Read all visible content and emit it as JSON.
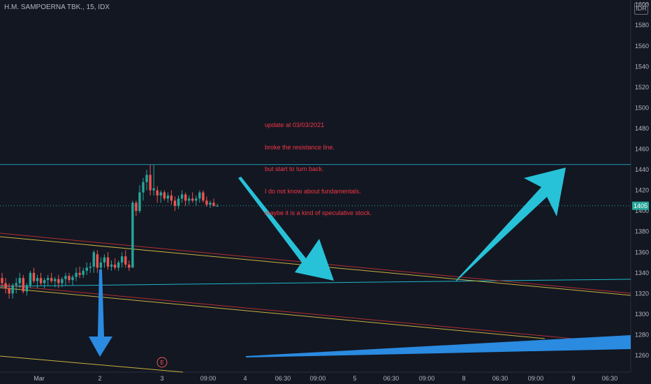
{
  "header": {
    "title": "H.M. SAMPOERNA TBK., 15, IDX",
    "currency": "IDR"
  },
  "annotation": {
    "lines": [
      "update at 03/03/2021",
      "broke the resistance line.",
      "but start to turn back.",
      "I do not know about fundamentals.",
      "maybe it is a kind of speculative stock."
    ]
  },
  "colors": {
    "background": "#131722",
    "up": "#26a69a",
    "down": "#ef5350",
    "resistance": "#2196b3",
    "support": "#1cb5c8",
    "channel_red": "#b03030",
    "channel_yellow": "#c8b040",
    "arrow_cyan": "#27c2d8",
    "arrow_blue": "#2a8be0",
    "price_badge": "#26a69a",
    "text": "#b2b5be",
    "note": "#f23645"
  },
  "chart_data": {
    "type": "candlestick",
    "title": "H.M. SAMPOERNA TBK., 15, IDX",
    "x_ticks": [
      "Mar",
      "2",
      "3",
      "09:00",
      "4",
      "06:30",
      "09:00",
      "5",
      "06:30",
      "09:00",
      "8",
      "06:30",
      "09:00",
      "9",
      "06:30"
    ],
    "y_ticks": [
      1260,
      1280,
      1300,
      1320,
      1340,
      1360,
      1380,
      1400,
      1420,
      1440,
      1460,
      1480,
      1500,
      1520,
      1540,
      1560,
      1580,
      1600
    ],
    "ylim": [
      1250,
      1605
    ],
    "last_price": 1405,
    "event_marker": "E",
    "candles": [
      {
        "o": 1335,
        "h": 1340,
        "l": 1325,
        "c": 1330
      },
      {
        "o": 1330,
        "h": 1335,
        "l": 1320,
        "c": 1325
      },
      {
        "o": 1325,
        "h": 1330,
        "l": 1315,
        "c": 1320
      },
      {
        "o": 1320,
        "h": 1330,
        "l": 1315,
        "c": 1328
      },
      {
        "o": 1328,
        "h": 1335,
        "l": 1320,
        "c": 1330
      },
      {
        "o": 1330,
        "h": 1340,
        "l": 1325,
        "c": 1335
      },
      {
        "o": 1335,
        "h": 1338,
        "l": 1320,
        "c": 1322
      },
      {
        "o": 1322,
        "h": 1330,
        "l": 1318,
        "c": 1328
      },
      {
        "o": 1328,
        "h": 1342,
        "l": 1325,
        "c": 1340
      },
      {
        "o": 1340,
        "h": 1345,
        "l": 1330,
        "c": 1332
      },
      {
        "o": 1332,
        "h": 1338,
        "l": 1325,
        "c": 1335
      },
      {
        "o": 1335,
        "h": 1340,
        "l": 1328,
        "c": 1330
      },
      {
        "o": 1330,
        "h": 1335,
        "l": 1325,
        "c": 1333
      },
      {
        "o": 1333,
        "h": 1338,
        "l": 1328,
        "c": 1335
      },
      {
        "o": 1335,
        "h": 1340,
        "l": 1330,
        "c": 1332
      },
      {
        "o": 1332,
        "h": 1336,
        "l": 1326,
        "c": 1334
      },
      {
        "o": 1334,
        "h": 1338,
        "l": 1325,
        "c": 1330
      },
      {
        "o": 1330,
        "h": 1336,
        "l": 1326,
        "c": 1334
      },
      {
        "o": 1334,
        "h": 1340,
        "l": 1328,
        "c": 1337
      },
      {
        "o": 1337,
        "h": 1340,
        "l": 1330,
        "c": 1333
      },
      {
        "o": 1333,
        "h": 1338,
        "l": 1328,
        "c": 1336
      },
      {
        "o": 1336,
        "h": 1345,
        "l": 1332,
        "c": 1340
      },
      {
        "o": 1340,
        "h": 1346,
        "l": 1335,
        "c": 1338
      },
      {
        "o": 1338,
        "h": 1345,
        "l": 1335,
        "c": 1342
      },
      {
        "o": 1342,
        "h": 1350,
        "l": 1338,
        "c": 1345
      },
      {
        "o": 1345,
        "h": 1350,
        "l": 1340,
        "c": 1346
      },
      {
        "o": 1346,
        "h": 1362,
        "l": 1340,
        "c": 1360
      },
      {
        "o": 1358,
        "h": 1362,
        "l": 1340,
        "c": 1345
      },
      {
        "o": 1345,
        "h": 1355,
        "l": 1342,
        "c": 1350
      },
      {
        "o": 1350,
        "h": 1358,
        "l": 1345,
        "c": 1355
      },
      {
        "o": 1355,
        "h": 1360,
        "l": 1343,
        "c": 1346
      },
      {
        "o": 1346,
        "h": 1352,
        "l": 1342,
        "c": 1348
      },
      {
        "o": 1348,
        "h": 1354,
        "l": 1343,
        "c": 1345
      },
      {
        "o": 1345,
        "h": 1352,
        "l": 1342,
        "c": 1350
      },
      {
        "o": 1350,
        "h": 1360,
        "l": 1345,
        "c": 1356
      },
      {
        "o": 1356,
        "h": 1362,
        "l": 1345,
        "c": 1348
      },
      {
        "o": 1348,
        "h": 1352,
        "l": 1342,
        "c": 1345
      },
      {
        "o": 1345,
        "h": 1410,
        "l": 1345,
        "c": 1408
      },
      {
        "o": 1408,
        "h": 1410,
        "l": 1395,
        "c": 1400
      },
      {
        "o": 1400,
        "h": 1425,
        "l": 1398,
        "c": 1418
      },
      {
        "o": 1418,
        "h": 1432,
        "l": 1410,
        "c": 1428
      },
      {
        "o": 1428,
        "h": 1440,
        "l": 1420,
        "c": 1435
      },
      {
        "o": 1435,
        "h": 1445,
        "l": 1415,
        "c": 1420
      },
      {
        "o": 1420,
        "h": 1445,
        "l": 1415,
        "c": 1422
      },
      {
        "o": 1420,
        "h": 1424,
        "l": 1408,
        "c": 1415
      },
      {
        "o": 1415,
        "h": 1420,
        "l": 1408,
        "c": 1418
      },
      {
        "o": 1418,
        "h": 1420,
        "l": 1410,
        "c": 1412
      },
      {
        "o": 1412,
        "h": 1418,
        "l": 1408,
        "c": 1415
      },
      {
        "o": 1415,
        "h": 1420,
        "l": 1406,
        "c": 1410
      },
      {
        "o": 1410,
        "h": 1414,
        "l": 1400,
        "c": 1405
      },
      {
        "o": 1405,
        "h": 1415,
        "l": 1402,
        "c": 1412
      },
      {
        "o": 1412,
        "h": 1420,
        "l": 1408,
        "c": 1416
      },
      {
        "o": 1416,
        "h": 1418,
        "l": 1405,
        "c": 1410
      },
      {
        "o": 1410,
        "h": 1415,
        "l": 1406,
        "c": 1412
      },
      {
        "o": 1412,
        "h": 1418,
        "l": 1408,
        "c": 1410
      },
      {
        "o": 1410,
        "h": 1415,
        "l": 1405,
        "c": 1412
      },
      {
        "o": 1412,
        "h": 1420,
        "l": 1408,
        "c": 1418
      },
      {
        "o": 1418,
        "h": 1420,
        "l": 1408,
        "c": 1410
      },
      {
        "o": 1410,
        "h": 1414,
        "l": 1404,
        "c": 1406
      },
      {
        "o": 1406,
        "h": 1410,
        "l": 1403,
        "c": 1408
      },
      {
        "o": 1408,
        "h": 1412,
        "l": 1404,
        "c": 1405
      },
      {
        "o": 1405,
        "h": 1407,
        "l": 1404,
        "c": 1405
      }
    ]
  }
}
